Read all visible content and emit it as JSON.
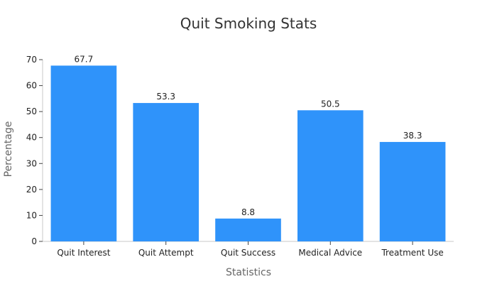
{
  "chart_data": {
    "type": "bar",
    "title": "Quit Smoking Stats",
    "xlabel": "Statistics",
    "ylabel": "Percentage",
    "categories": [
      "Quit Interest",
      "Quit Attempt",
      "Quit Success",
      "Medical Advice",
      "Treatment Use"
    ],
    "values": [
      67.7,
      53.3,
      8.8,
      50.5,
      38.3
    ],
    "value_labels": [
      "67.7",
      "53.3",
      "8.8",
      "50.5",
      "38.3"
    ],
    "ylim": [
      0,
      70
    ],
    "yticks": [
      0,
      10,
      20,
      30,
      40,
      50,
      60,
      70
    ],
    "grid": false,
    "bar_color": "#2f93fa",
    "axis_color": "#c8c8c8"
  }
}
